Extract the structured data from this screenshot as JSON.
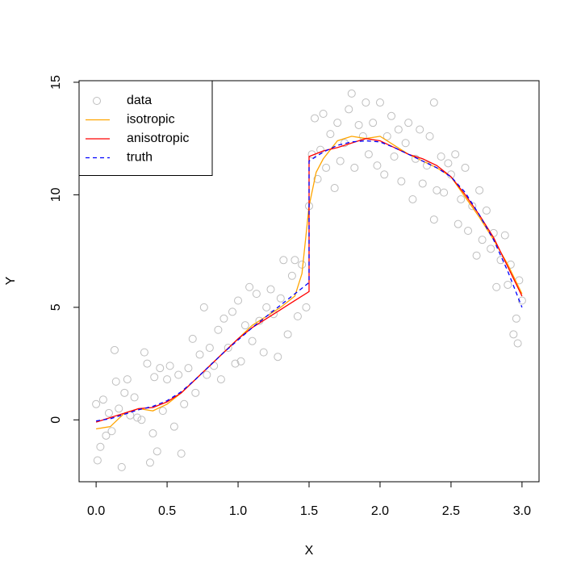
{
  "chart_data": {
    "type": "scatter",
    "x_label": "X",
    "y_label": "Y",
    "xlim": [
      -0.12,
      3.12
    ],
    "ylim": [
      -2.75,
      15.07
    ],
    "xticks": [
      {
        "value": 0,
        "label": "0.0"
      },
      0.5,
      {
        "value": 1,
        "label": "1.0"
      },
      1.5,
      {
        "value": 2,
        "label": "2.0"
      },
      2.5,
      {
        "value": 3,
        "label": "3.0"
      }
    ],
    "yticks": [
      0,
      5,
      10,
      15
    ],
    "legend": "topleft",
    "series": [
      {
        "name": "data",
        "color": "#bebebe",
        "style": "points",
        "x": [
          0,
          0.01,
          0.03,
          0.05,
          0.07,
          0.09,
          0.11,
          0.13,
          0.14,
          0.16,
          0.18,
          0.2,
          0.22,
          0.24,
          0.27,
          0.29,
          0.32,
          0.34,
          0.36,
          0.38,
          0.4,
          0.41,
          0.43,
          0.45,
          0.47,
          0.5,
          0.52,
          0.55,
          0.58,
          0.6,
          0.62,
          0.65,
          0.68,
          0.7,
          0.73,
          0.76,
          0.78,
          0.8,
          0.83,
          0.86,
          0.88,
          0.9,
          0.93,
          0.96,
          0.98,
          1.0,
          1.02,
          1.05,
          1.08,
          1.1,
          1.13,
          1.15,
          1.18,
          1.2,
          1.23,
          1.25,
          1.28,
          1.3,
          1.32,
          1.35,
          1.38,
          1.4,
          1.42,
          1.45,
          1.48,
          1.5,
          1.52,
          1.54,
          1.56,
          1.58,
          1.6,
          1.62,
          1.65,
          1.68,
          1.7,
          1.72,
          1.75,
          1.78,
          1.8,
          1.82,
          1.85,
          1.88,
          1.9,
          1.92,
          1.95,
          1.98,
          2.0,
          2.03,
          2.05,
          2.08,
          2.1,
          2.13,
          2.15,
          2.18,
          2.2,
          2.23,
          2.25,
          2.28,
          2.3,
          2.33,
          2.35,
          2.38,
          2.38,
          2.4,
          2.43,
          2.45,
          2.48,
          2.5,
          2.53,
          2.55,
          2.57,
          2.6,
          2.62,
          2.65,
          2.68,
          2.7,
          2.72,
          2.75,
          2.78,
          2.8,
          2.82,
          2.85,
          2.88,
          2.9,
          2.92,
          2.94,
          2.96,
          2.97,
          2.98,
          3.0
        ],
        "values": [
          0.7,
          -1.8,
          -1.2,
          0.9,
          -0.7,
          0.3,
          -0.5,
          3.1,
          1.7,
          0.5,
          -2.1,
          1.2,
          1.8,
          0.2,
          1.0,
          0.1,
          0.0,
          3.0,
          2.5,
          -1.9,
          -0.6,
          1.9,
          -1.4,
          2.3,
          0.4,
          1.8,
          2.4,
          -0.3,
          2.0,
          -1.5,
          0.7,
          2.3,
          3.6,
          1.2,
          2.9,
          5.0,
          2.0,
          3.2,
          2.4,
          4.0,
          1.8,
          4.5,
          3.2,
          4.8,
          2.5,
          5.3,
          2.6,
          4.2,
          5.9,
          3.5,
          5.6,
          4.4,
          3.0,
          5.0,
          5.8,
          4.7,
          2.8,
          5.4,
          7.1,
          3.8,
          6.4,
          7.1,
          4.6,
          6.9,
          5.0,
          9.5,
          11.8,
          13.4,
          10.7,
          12.0,
          13.6,
          11.2,
          12.7,
          10.3,
          13.2,
          11.5,
          12.3,
          13.8,
          14.5,
          11.2,
          13.1,
          12.6,
          14.1,
          11.8,
          13.2,
          11.3,
          14.1,
          10.9,
          12.6,
          13.5,
          11.7,
          12.9,
          10.6,
          12.3,
          13.2,
          9.8,
          11.6,
          12.9,
          10.5,
          11.3,
          12.6,
          14.1,
          8.9,
          10.2,
          11.7,
          10.1,
          11.4,
          10.9,
          11.8,
          8.7,
          9.8,
          11.2,
          8.4,
          9.5,
          7.3,
          10.2,
          8.0,
          9.3,
          7.6,
          8.3,
          5.9,
          7.1,
          8.2,
          6.0,
          6.9,
          3.8,
          4.5,
          3.4,
          6.2,
          5.3
        ]
      },
      {
        "name": "isotropic",
        "color": "#ffa500",
        "style": "solid",
        "x": [
          0,
          0.1,
          0.2,
          0.3,
          0.4,
          0.5,
          0.6,
          0.7,
          0.8,
          0.9,
          1.0,
          1.1,
          1.2,
          1.3,
          1.4,
          1.45,
          1.5,
          1.55,
          1.6,
          1.7,
          1.8,
          1.9,
          2.0,
          2.1,
          2.2,
          2.3,
          2.4,
          2.5,
          2.6,
          2.7,
          2.8,
          2.9,
          3.0
        ],
        "values": [
          -0.4,
          -0.3,
          0.3,
          0.5,
          0.4,
          0.7,
          1.2,
          1.8,
          2.4,
          3.0,
          3.6,
          4.2,
          4.6,
          5.0,
          5.5,
          6.5,
          9.5,
          11.0,
          11.6,
          12.4,
          12.6,
          12.5,
          12.6,
          12.2,
          11.8,
          11.5,
          11.2,
          10.8,
          9.9,
          9.0,
          8.0,
          6.9,
          5.6
        ]
      },
      {
        "name": "anisotropic",
        "color": "#ff0000",
        "style": "solid",
        "x": [
          0,
          0.1,
          0.2,
          0.3,
          0.4,
          0.5,
          0.6,
          0.7,
          0.8,
          0.9,
          1.0,
          1.1,
          1.2,
          1.3,
          1.4,
          1.5,
          1.5,
          1.6,
          1.7,
          1.8,
          1.9,
          2.0,
          2.1,
          2.2,
          2.3,
          2.4,
          2.5,
          2.6,
          2.7,
          2.8,
          2.9,
          3.0
        ],
        "values": [
          -0.1,
          0.1,
          0.3,
          0.5,
          0.55,
          0.8,
          1.2,
          1.8,
          2.4,
          3.0,
          3.6,
          4.1,
          4.5,
          4.9,
          5.3,
          5.7,
          11.7,
          11.95,
          12.1,
          12.3,
          12.5,
          12.4,
          12.1,
          11.8,
          11.6,
          11.3,
          10.8,
          10.0,
          9.1,
          8.1,
          6.8,
          5.5
        ]
      },
      {
        "name": "truth",
        "color": "#0000ff",
        "style": "dashed",
        "x": [
          0,
          0.1,
          0.2,
          0.3,
          0.4,
          0.5,
          0.6,
          0.7,
          0.8,
          0.9,
          1.0,
          1.1,
          1.2,
          1.3,
          1.4,
          1.5,
          1.5,
          1.6,
          1.7,
          1.8,
          1.9,
          2.0,
          2.1,
          2.2,
          2.3,
          2.4,
          2.5,
          2.6,
          2.7,
          2.8,
          2.9,
          3.0
        ],
        "values": [
          -0.05,
          0.05,
          0.25,
          0.45,
          0.6,
          0.85,
          1.25,
          1.8,
          2.4,
          3.0,
          3.55,
          4.1,
          4.6,
          5.1,
          5.6,
          6.1,
          11.5,
          11.9,
          12.2,
          12.35,
          12.4,
          12.35,
          12.1,
          11.8,
          11.5,
          11.2,
          10.8,
          10.1,
          9.1,
          8.0,
          6.6,
          5.0
        ]
      }
    ]
  }
}
